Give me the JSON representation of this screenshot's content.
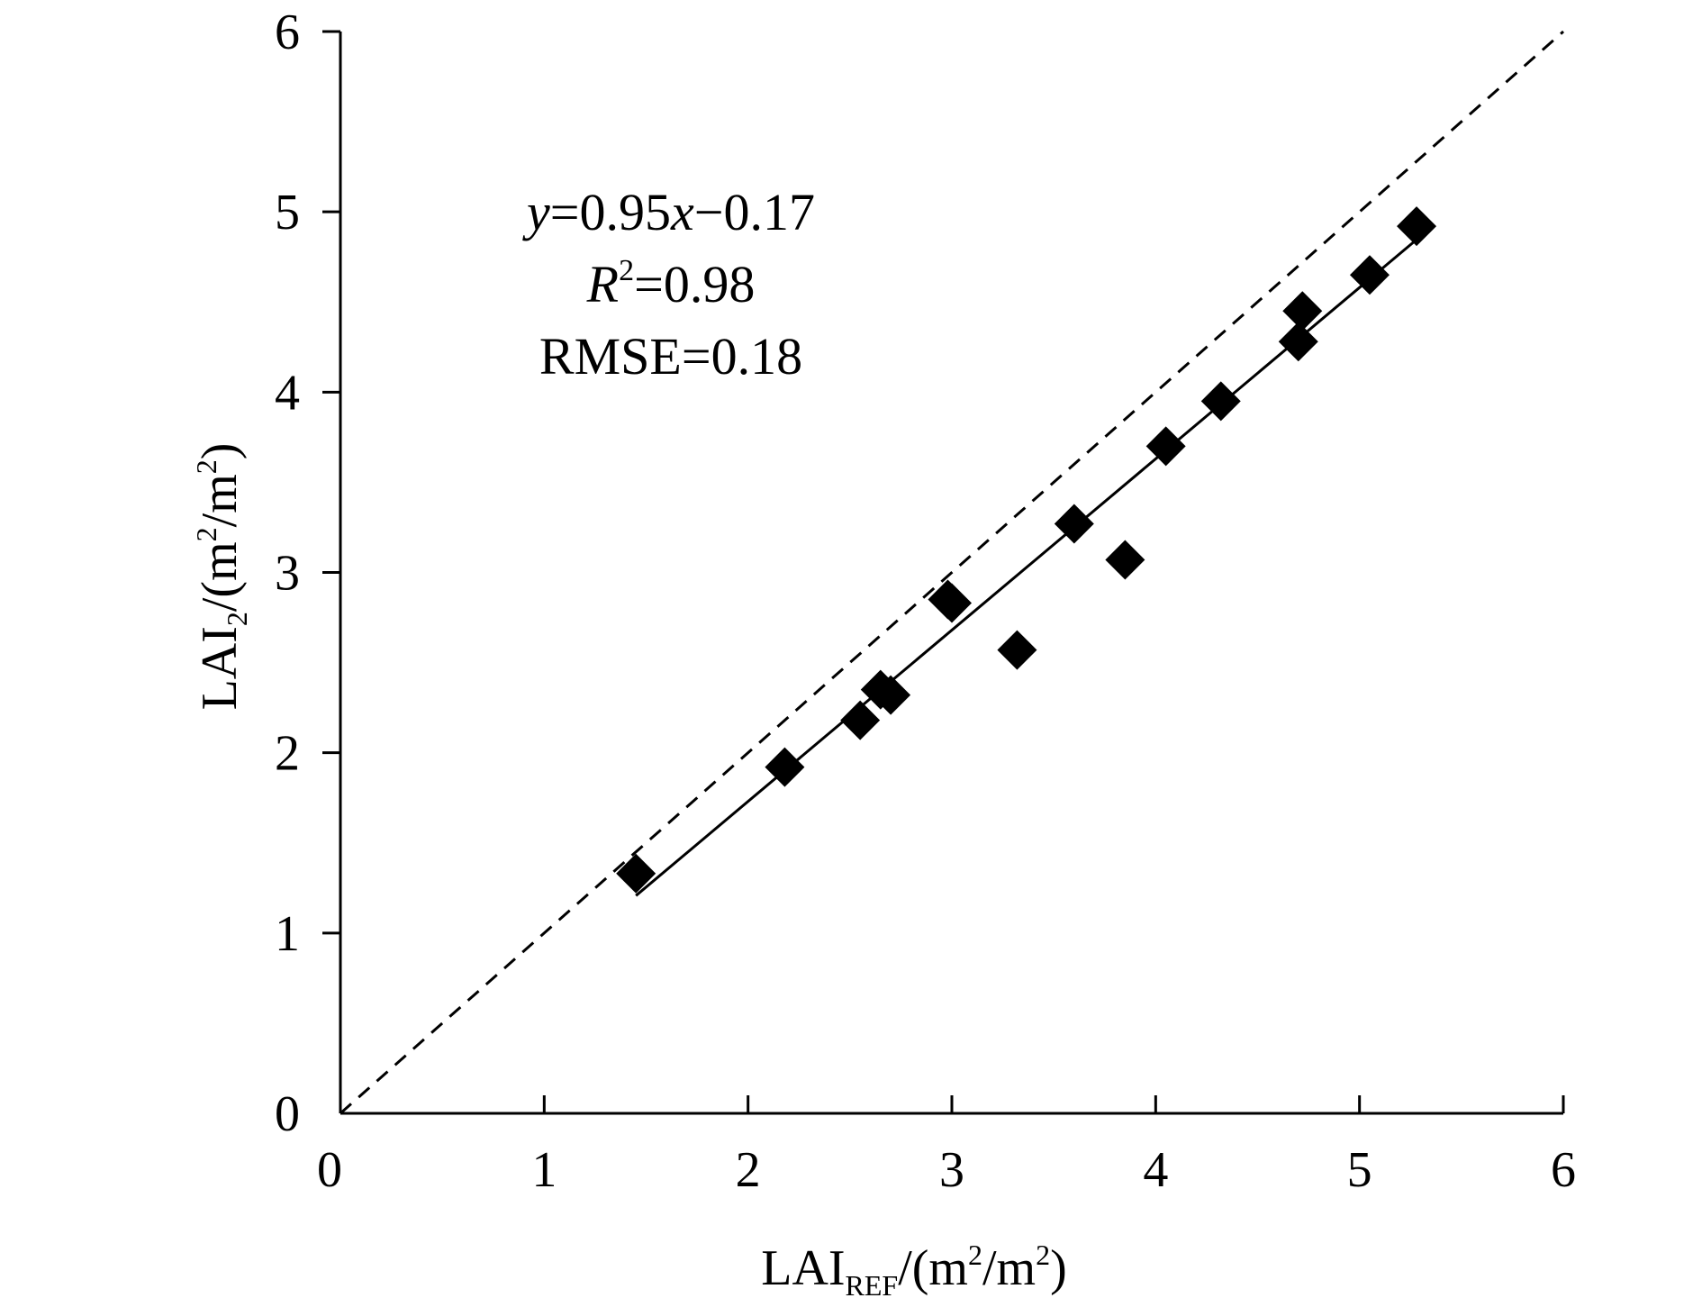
{
  "chart_data": {
    "type": "scatter",
    "xlabel": {
      "base": "LAI",
      "subscript": "REF",
      "unit_prefix": "/(m",
      "unit_sup1": "2",
      "unit_mid": "/m",
      "unit_sup2": "2",
      "unit_suffix": ")"
    },
    "ylabel": {
      "base": "LAI",
      "subscript": "2",
      "unit_prefix": "/(m",
      "unit_sup1": "2",
      "unit_mid": "/m",
      "unit_sup2": "2",
      "unit_suffix": ")"
    },
    "xlim": [
      0,
      6
    ],
    "ylim": [
      0,
      6
    ],
    "xticks": [
      "0",
      "1",
      "2",
      "3",
      "4",
      "5",
      "6"
    ],
    "yticks": [
      "0",
      "1",
      "2",
      "3",
      "4",
      "5",
      "6"
    ],
    "grid": false,
    "marker": "diamond",
    "marker_color": "#000000",
    "points": [
      {
        "x": 1.45,
        "y": 1.33
      },
      {
        "x": 2.18,
        "y": 1.92
      },
      {
        "x": 2.55,
        "y": 2.18
      },
      {
        "x": 2.65,
        "y": 2.35
      },
      {
        "x": 2.7,
        "y": 2.32
      },
      {
        "x": 2.98,
        "y": 2.85
      },
      {
        "x": 3.0,
        "y": 2.83
      },
      {
        "x": 3.32,
        "y": 2.57
      },
      {
        "x": 3.6,
        "y": 3.27
      },
      {
        "x": 3.85,
        "y": 3.07
      },
      {
        "x": 4.05,
        "y": 3.7
      },
      {
        "x": 4.32,
        "y": 3.95
      },
      {
        "x": 4.7,
        "y": 4.28
      },
      {
        "x": 4.72,
        "y": 4.45
      },
      {
        "x": 5.05,
        "y": 4.65
      },
      {
        "x": 5.28,
        "y": 4.92
      }
    ],
    "fit_line": {
      "slope": 0.95,
      "intercept": -0.17,
      "x_range": [
        1.45,
        5.28
      ],
      "style": "solid"
    },
    "reference_line": {
      "slope": 1,
      "intercept": 0,
      "x_range": [
        0,
        6
      ],
      "style": "dashed"
    },
    "annotation": {
      "equation": {
        "y": "y",
        "eq1": "=0.95",
        "x": "x",
        "rest": "−0.17"
      },
      "r2": {
        "R": "R",
        "sup": "2",
        "rest": "=0.98"
      },
      "rmse": "RMSE=0.18"
    }
  }
}
